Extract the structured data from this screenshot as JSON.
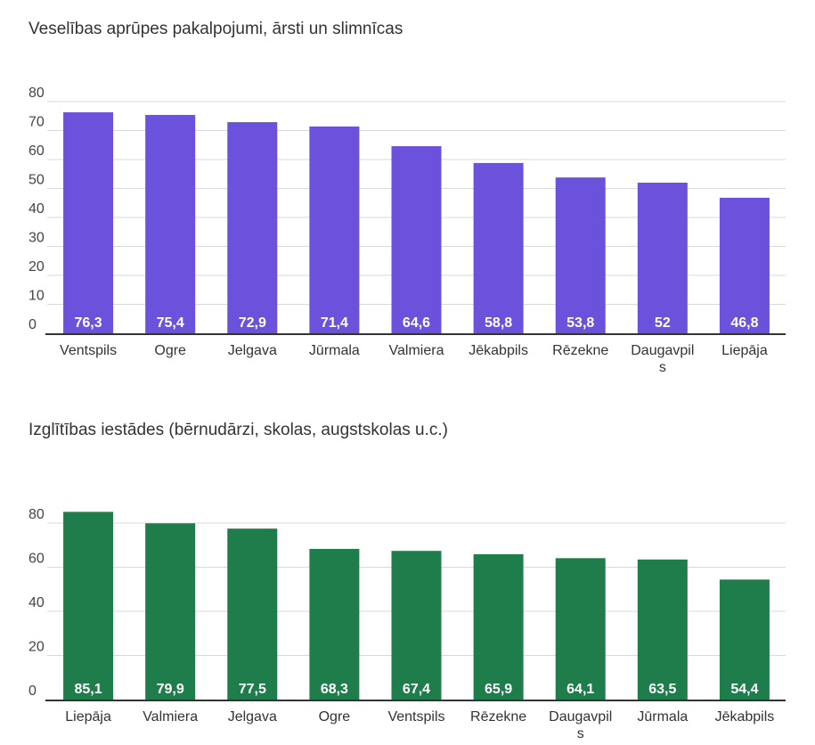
{
  "chart_data": [
    {
      "type": "bar",
      "title": "Veselības aprūpes pakalpojumi, ārsti un slimnīcas",
      "categories": [
        "Ventspils",
        "Ogre",
        "Jelgava",
        "Jūrmala",
        "Valmiera",
        "Jēkabpils",
        "Rēzekne",
        "Daugavpils",
        "Liepāja"
      ],
      "category_labels": [
        [
          "Ventspils"
        ],
        [
          "Ogre"
        ],
        [
          "Jelgava"
        ],
        [
          "Jūrmala"
        ],
        [
          "Valmiera"
        ],
        [
          "Jēkabpils"
        ],
        [
          "Rēzekne"
        ],
        [
          "Daugavpil",
          "s"
        ],
        [
          "Liepāja"
        ]
      ],
      "values": [
        76.3,
        75.4,
        72.9,
        71.4,
        64.6,
        58.8,
        53.8,
        52,
        46.8
      ],
      "value_labels": [
        "76,3",
        "75,4",
        "72,9",
        "71,4",
        "64,6",
        "58,8",
        "53,8",
        "52",
        "46,8"
      ],
      "yticks": [
        0,
        10,
        20,
        30,
        40,
        50,
        60,
        70,
        80
      ],
      "ylim": [
        0,
        80
      ],
      "color": "#6b51db",
      "grid": true,
      "xlabel": "",
      "ylabel": ""
    },
    {
      "type": "bar",
      "title": "Izglītības iestādes (bērnudārzi, skolas, augstskolas u.c.)",
      "categories": [
        "Liepāja",
        "Valmiera",
        "Jelgava",
        "Ogre",
        "Ventspils",
        "Rēzekne",
        "Daugavpils",
        "Jūrmala",
        "Jēkabpils"
      ],
      "category_labels": [
        [
          "Liepāja"
        ],
        [
          "Valmiera"
        ],
        [
          "Jelgava"
        ],
        [
          "Ogre"
        ],
        [
          "Ventspils"
        ],
        [
          "Rēzekne"
        ],
        [
          "Daugavpil",
          "s"
        ],
        [
          "Jūrmala"
        ],
        [
          "Jēkabpils"
        ]
      ],
      "values": [
        85.1,
        79.9,
        77.5,
        68.3,
        67.4,
        65.9,
        64.1,
        63.5,
        54.4
      ],
      "value_labels": [
        "85,1",
        "79,9",
        "77,5",
        "68,3",
        "67,4",
        "65,9",
        "64,1",
        "63,5",
        "54,4"
      ],
      "yticks": [
        0,
        20,
        40,
        60,
        80
      ],
      "ylim": [
        0,
        80
      ],
      "color": "#1f7d4b",
      "grid": true,
      "xlabel": "",
      "ylabel": ""
    }
  ]
}
